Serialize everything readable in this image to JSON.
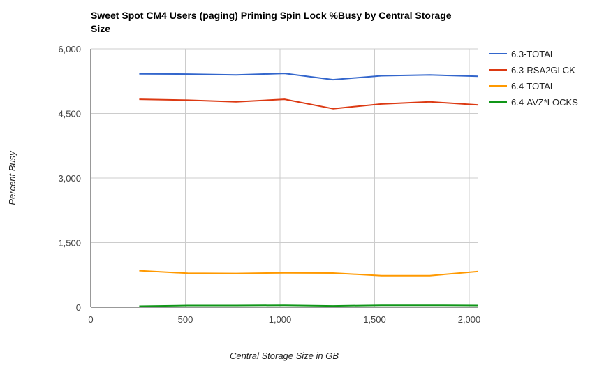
{
  "chart_data": {
    "type": "line",
    "title_lines": [
      "Sweet Spot CM4 Users (paging) Priming Spin Lock %Busy by Central Storage",
      "Size"
    ],
    "xlabel": "Central Storage Size in GB",
    "ylabel": "Percent Busy",
    "xlim": [
      0,
      2048
    ],
    "ylim": [
      0,
      6000
    ],
    "x_ticks": [
      0,
      500,
      1000,
      1500,
      2000
    ],
    "x_tick_labels": [
      "0",
      "500",
      "1,000",
      "1,500",
      "2,000"
    ],
    "y_ticks": [
      0,
      1500,
      3000,
      4500,
      6000
    ],
    "y_tick_labels": [
      "0",
      "1,500",
      "3,000",
      "4,500",
      "6,000"
    ],
    "grid": true,
    "legend_position": "right",
    "x": [
      256,
      512,
      768,
      1024,
      1280,
      1536,
      1792,
      2048
    ],
    "series": [
      {
        "name": "6.3-TOTAL",
        "color": "#3366cc",
        "values": [
          5420,
          5415,
          5395,
          5430,
          5285,
          5375,
          5395,
          5365
        ]
      },
      {
        "name": "6.3-RSA2GLCK",
        "color": "#dc3912",
        "values": [
          4830,
          4810,
          4770,
          4830,
          4610,
          4720,
          4770,
          4700
        ]
      },
      {
        "name": "6.4-TOTAL",
        "color": "#ff9900",
        "values": [
          850,
          790,
          785,
          800,
          795,
          735,
          735,
          830
        ]
      },
      {
        "name": "6.4-AVZ*LOCKS",
        "color": "#109618",
        "values": [
          25,
          40,
          40,
          45,
          30,
          45,
          45,
          40
        ]
      }
    ]
  }
}
